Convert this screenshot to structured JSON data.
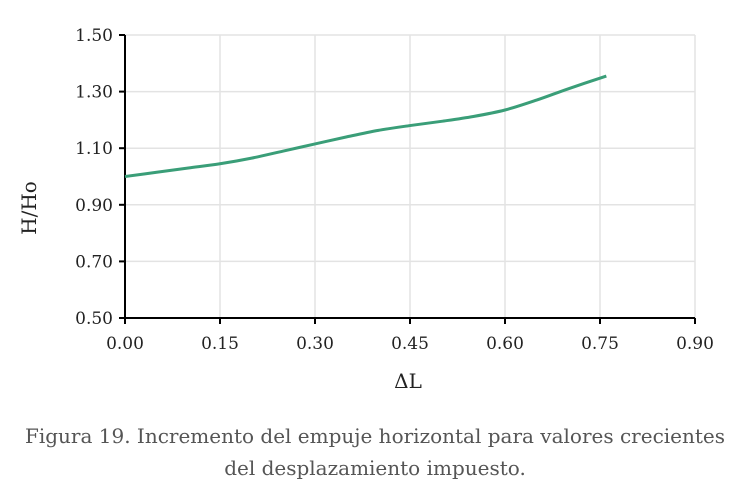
{
  "chart_data": {
    "type": "line",
    "title": "",
    "xlabel": "ΔL",
    "ylabel": "H/Ho",
    "xlim": [
      0,
      0.9
    ],
    "ylim": [
      0.5,
      1.5
    ],
    "x_ticks": [
      "0.00",
      "0.15",
      "0.30",
      "0.45",
      "0.60",
      "0.75",
      "0.90"
    ],
    "y_ticks": [
      "0.50",
      "0.70",
      "0.90",
      "1.10",
      "1.30",
      "1.50"
    ],
    "grid": true,
    "line_color": "#3a9e78",
    "series": [
      {
        "x": [
          0.0,
          0.05,
          0.1,
          0.15,
          0.2,
          0.25,
          0.3,
          0.35,
          0.4,
          0.45,
          0.5,
          0.55,
          0.6,
          0.65,
          0.7,
          0.76
        ],
        "y": [
          1.0,
          1.015,
          1.03,
          1.045,
          1.065,
          1.09,
          1.115,
          1.14,
          1.163,
          1.18,
          1.195,
          1.212,
          1.235,
          1.27,
          1.31,
          1.355
        ]
      }
    ]
  },
  "caption": {
    "line1": "Figura 19. Incremento del empuje horizontal para valores crecientes",
    "line2": "del desplazamiento impuesto."
  }
}
